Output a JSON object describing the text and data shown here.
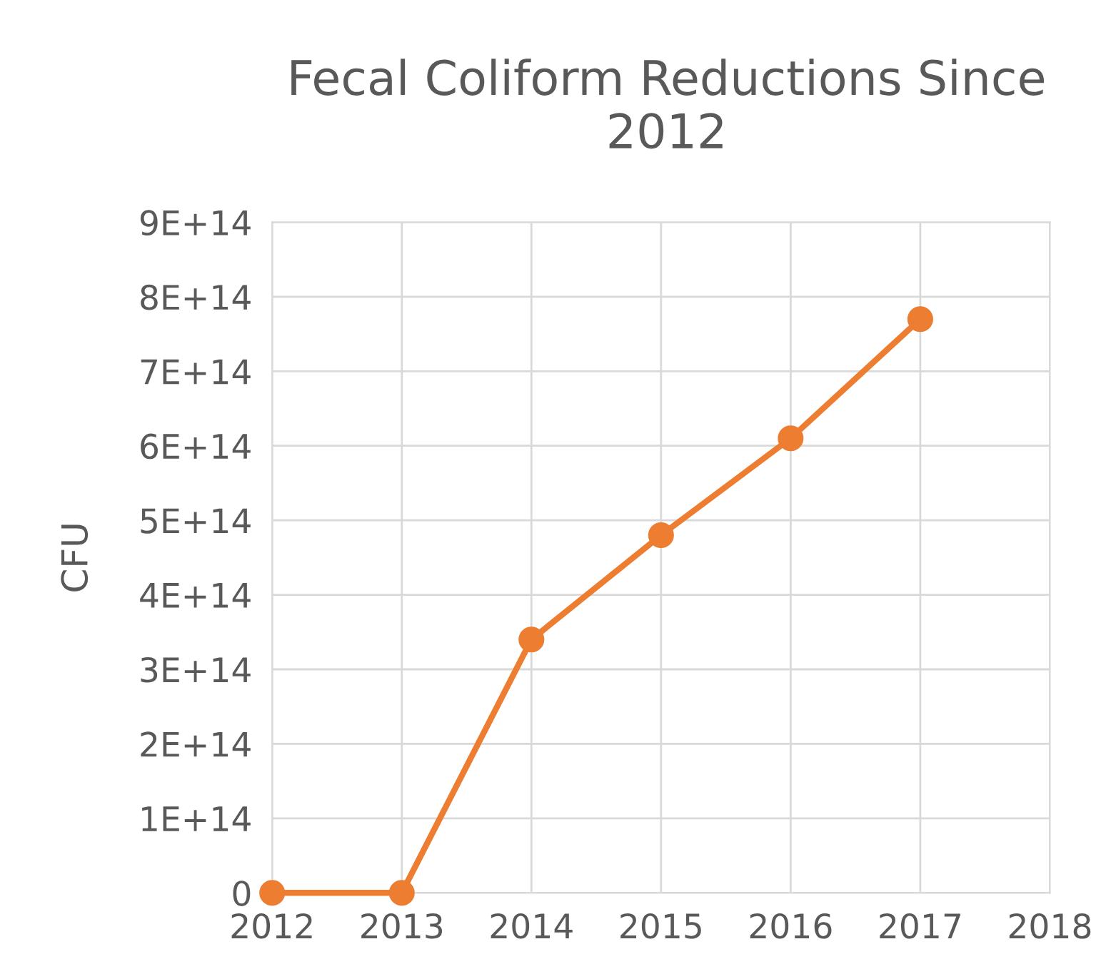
{
  "chart_data": {
    "type": "line",
    "title": "Fecal Coliform Reductions Since 2012",
    "ylabel": "CFU",
    "x": [
      2012,
      2013,
      2014,
      2015,
      2016,
      2017
    ],
    "series": [
      {
        "color": "#ed7d31",
        "values": [
          0,
          0,
          340000000000000.0,
          480000000000000.0,
          610000000000000.0,
          770000000000000.0
        ]
      }
    ],
    "xlim": [
      2012,
      2018
    ],
    "xticks": [
      2012,
      2013,
      2014,
      2015,
      2016,
      2017,
      2018
    ],
    "ylim": [
      0,
      900000000000000.0
    ],
    "yticks": [
      0,
      {
        "value": 100000000000000.0,
        "label": "1E+14"
      },
      {
        "value": 200000000000000.0,
        "label": "2E+14"
      },
      {
        "value": 300000000000000.0,
        "label": "3E+14"
      },
      {
        "value": 400000000000000.0,
        "label": "4E+14"
      },
      {
        "value": 500000000000000.0,
        "label": "5E+14"
      },
      {
        "value": 600000000000000.0,
        "label": "6E+14"
      },
      {
        "value": 700000000000000.0,
        "label": "7E+14"
      },
      {
        "value": 800000000000000.0,
        "label": "8E+14"
      },
      {
        "value": 900000000000000.0,
        "label": "9E+14"
      }
    ],
    "grid": true,
    "marker": "circle",
    "line_style": "solid"
  }
}
